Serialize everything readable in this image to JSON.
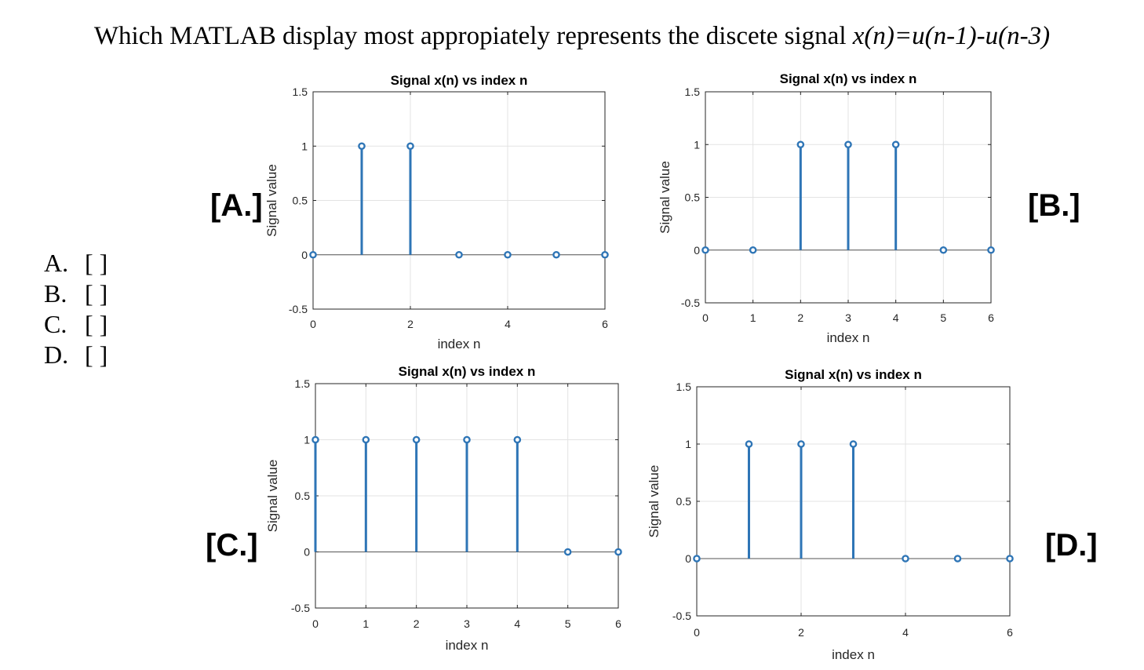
{
  "question": {
    "prefix": "Which MATLAB display most appropiately represents the discete signal ",
    "math": "x(n)=u(n-1)-u(n-3)"
  },
  "choices": [
    {
      "letter": "A.",
      "box": "[ ]"
    },
    {
      "letter": "B.",
      "box": "[ ]"
    },
    {
      "letter": "C.",
      "box": "[ ]"
    },
    {
      "letter": "D.",
      "box": "[ ]"
    }
  ],
  "panel_labels": [
    "[A.]",
    "[B.]",
    "[C.]",
    "[D.]"
  ],
  "colors": {
    "stem": "#2e75b6",
    "axis": "#262626",
    "grid": "#e3e3e3"
  },
  "chart_data": [
    {
      "type": "stem",
      "title": "Signal x(n) vs index n",
      "xlabel": "index n",
      "ylabel": "Signal value",
      "xlim": [
        0,
        6
      ],
      "ylim": [
        -0.5,
        1.5
      ],
      "xticks": [
        0,
        2,
        4,
        6
      ],
      "yticks": [
        -0.5,
        0,
        0.5,
        1,
        1.5
      ],
      "x": [
        0,
        1,
        2,
        3,
        4,
        5,
        6
      ],
      "values": [
        0,
        1,
        1,
        0,
        0,
        0,
        0
      ],
      "grid": true
    },
    {
      "type": "stem",
      "title": "Signal x(n) vs index n",
      "xlabel": "index n",
      "ylabel": "Signal value",
      "xlim": [
        0,
        6
      ],
      "ylim": [
        -0.5,
        1.5
      ],
      "xticks": [
        0,
        1,
        2,
        3,
        4,
        5,
        6
      ],
      "yticks": [
        -0.5,
        0,
        0.5,
        1,
        1.5
      ],
      "x": [
        0,
        1,
        2,
        3,
        4,
        5,
        6
      ],
      "values": [
        0,
        0,
        1,
        1,
        1,
        0,
        0
      ],
      "grid": true
    },
    {
      "type": "stem",
      "title": "Signal x(n) vs index n",
      "xlabel": "index n",
      "ylabel": "Signal value",
      "xlim": [
        0,
        6
      ],
      "ylim": [
        -0.5,
        1.5
      ],
      "xticks": [
        0,
        1,
        2,
        3,
        4,
        5,
        6
      ],
      "yticks": [
        -0.5,
        0,
        0.5,
        1,
        1.5
      ],
      "x": [
        0,
        1,
        2,
        3,
        4,
        5,
        6
      ],
      "values": [
        1,
        1,
        1,
        1,
        1,
        0,
        0
      ],
      "grid": true
    },
    {
      "type": "stem",
      "title": "Signal x(n) vs index n",
      "xlabel": "index n",
      "ylabel": "Signal value",
      "xlim": [
        0,
        6
      ],
      "ylim": [
        -0.5,
        1.5
      ],
      "xticks": [
        0,
        2,
        4,
        6
      ],
      "yticks": [
        -0.5,
        0,
        0.5,
        1,
        1.5
      ],
      "x": [
        0,
        1,
        2,
        3,
        4,
        5,
        6
      ],
      "values": [
        0,
        1,
        1,
        1,
        0,
        0,
        0
      ],
      "grid": true
    }
  ]
}
